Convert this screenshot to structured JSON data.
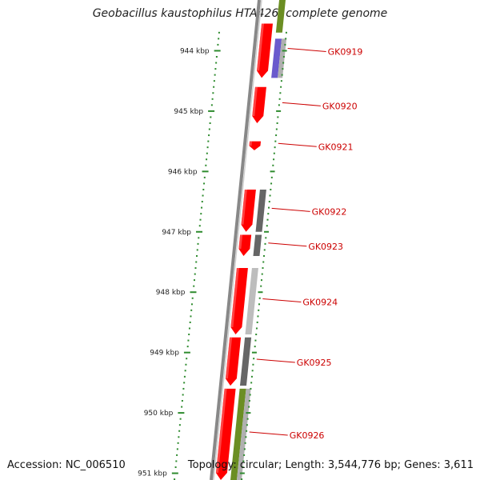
{
  "title": "Geobacillus kaustophilus HTA426, complete genome",
  "footer": {
    "accession": "Accession: NC_006510",
    "topology": "Topology: circular; Length: 3,544,776 bp; Genes: 3,611"
  },
  "colors": {
    "forward_gene": "#ff0000",
    "gene_label": "#cc0000",
    "ruler": "#2e8b2e",
    "backbone": "#888888"
  },
  "scale": {
    "unit": "kbp",
    "ticks": [
      {
        "kbp": 944,
        "label": "944 kbp"
      },
      {
        "kbp": 945,
        "label": "945 kbp"
      },
      {
        "kbp": 946,
        "label": "946 kbp"
      },
      {
        "kbp": 947,
        "label": "947 kbp"
      },
      {
        "kbp": 948,
        "label": "948 kbp"
      },
      {
        "kbp": 949,
        "label": "949 kbp"
      },
      {
        "kbp": 950,
        "label": "950 kbp"
      },
      {
        "kbp": 951,
        "label": "951 kbp"
      }
    ]
  },
  "genes": [
    {
      "label": "GK0919",
      "start": 943.55,
      "end": 944.45
    },
    {
      "label": "GK0920",
      "start": 944.6,
      "end": 945.2
    },
    {
      "label": "GK0921",
      "start": 945.5,
      "end": 945.65
    },
    {
      "label": "GK0922",
      "start": 946.3,
      "end": 947.0
    },
    {
      "label": "GK0923",
      "start": 947.05,
      "end": 947.4
    },
    {
      "label": "GK0924",
      "start": 947.6,
      "end": 948.7
    },
    {
      "label": "GK0925",
      "start": 948.75,
      "end": 949.55
    },
    {
      "label": "GK0926",
      "start": 949.6,
      "end": 951.3
    }
  ],
  "orthologs": [
    {
      "start": 943.0,
      "end": 943.7,
      "color": "#6b8e23"
    },
    {
      "start": 943.8,
      "end": 944.45,
      "color": "#6a5acd"
    },
    {
      "start": 943.8,
      "end": 944.45,
      "color": "#b0b0b0",
      "lane": 2
    },
    {
      "start": 946.3,
      "end": 947.0,
      "color": "#666666"
    },
    {
      "start": 947.05,
      "end": 947.4,
      "color": "#666666"
    },
    {
      "start": 947.6,
      "end": 948.7,
      "color": "#bdbdbd"
    },
    {
      "start": 948.75,
      "end": 949.55,
      "color": "#666666"
    },
    {
      "start": 949.6,
      "end": 951.3,
      "color": "#6b8e23"
    },
    {
      "start": 949.6,
      "end": 951.3,
      "color": "#b0b0b0",
      "lane": 2
    }
  ]
}
